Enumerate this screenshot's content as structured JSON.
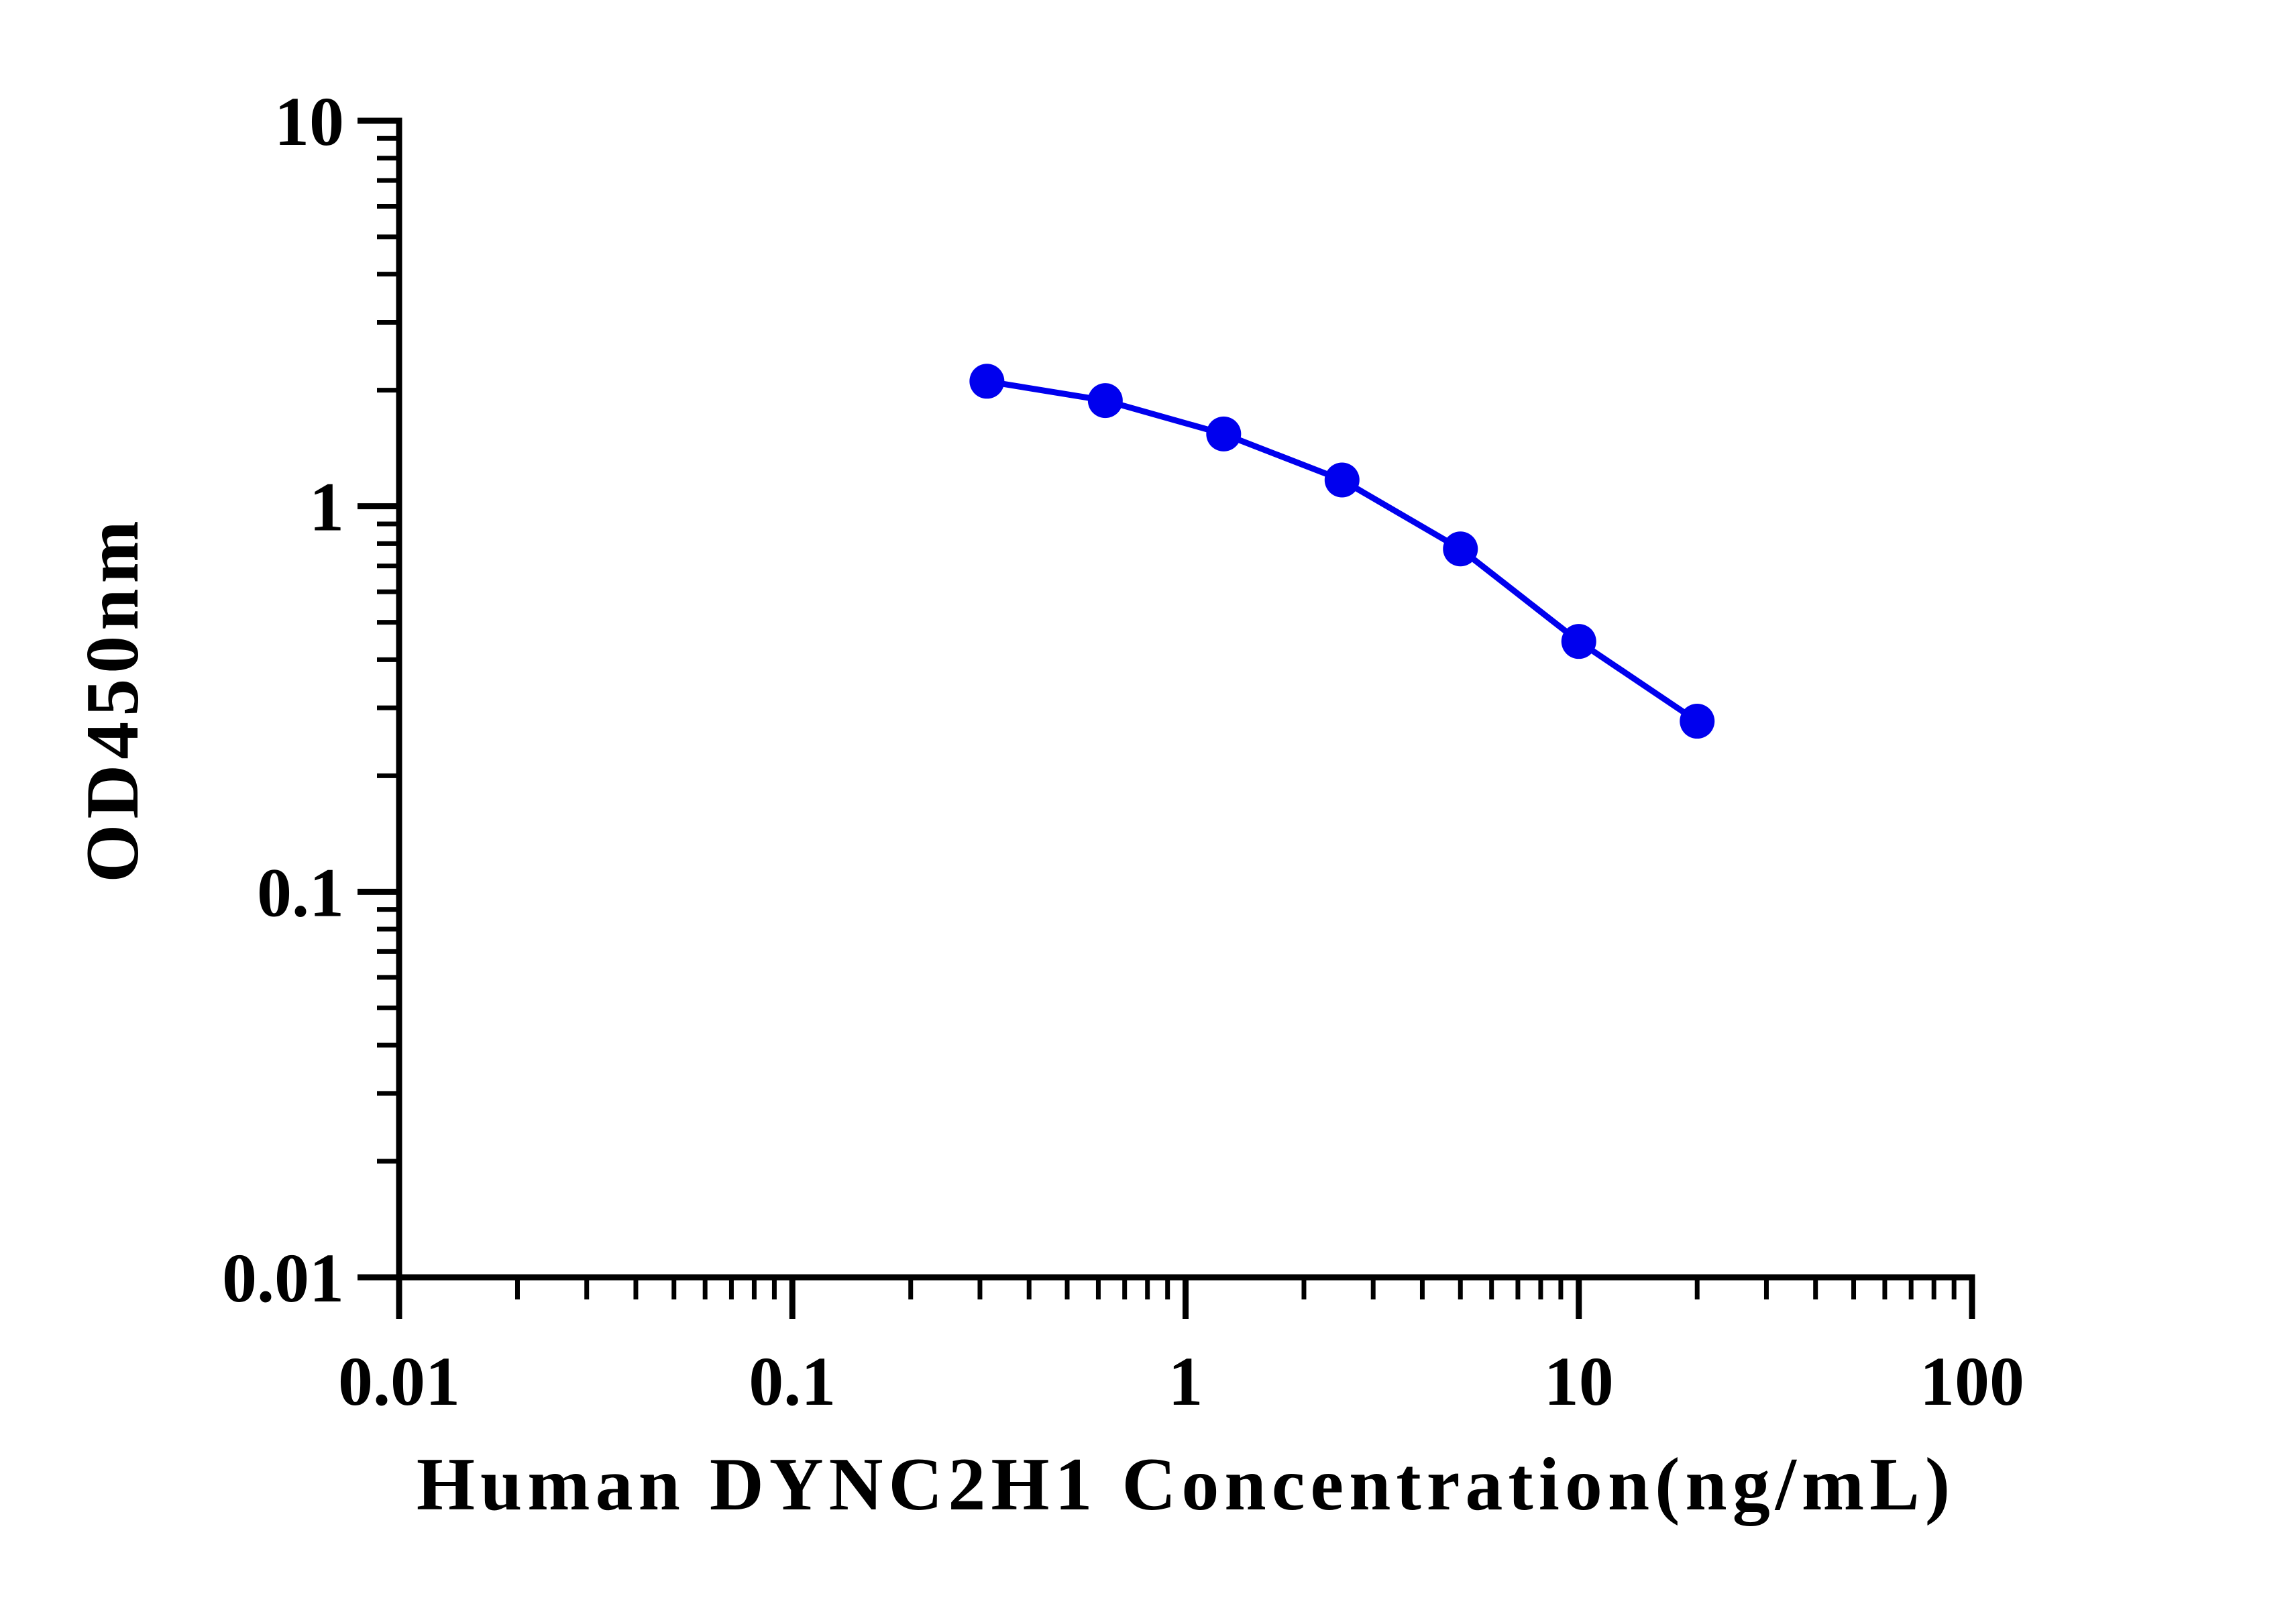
{
  "chart_data": {
    "type": "line",
    "x_label": "Human DYNC2H1 Concentration(ng/mL)",
    "y_label": "OD450nm",
    "x": [
      0.3125,
      0.625,
      1.25,
      2.5,
      5,
      10,
      20
    ],
    "series": [
      {
        "color": "#0000ee",
        "values": [
          2.11,
          1.88,
          1.54,
          1.17,
          0.775,
          0.446,
          0.277
        ]
      }
    ],
    "xlim": [
      0.01,
      100
    ],
    "ylim": [
      0.01,
      10
    ],
    "xticks": [
      0.01,
      0.1,
      1,
      10,
      100
    ],
    "yticks": [
      0.01,
      0.1,
      1,
      10
    ],
    "xscale": "log",
    "yscale": "log",
    "grid": false
  }
}
